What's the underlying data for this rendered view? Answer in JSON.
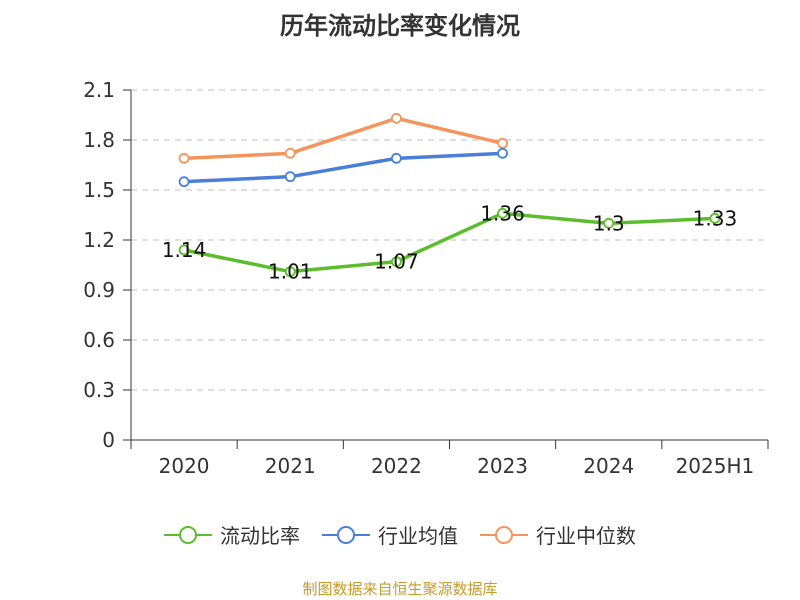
{
  "chart_data": {
    "type": "line",
    "title": "历年流动比率变化情况",
    "categories": [
      "2020",
      "2021",
      "2022",
      "2023",
      "2024",
      "2025H1"
    ],
    "ylim": [
      0,
      2.1
    ],
    "yticks": [
      "0",
      "0.3",
      "0.6",
      "0.9",
      "1.2",
      "1.5",
      "1.8",
      "2.1"
    ],
    "ytick_values": [
      0,
      0.3,
      0.6,
      0.9,
      1.2,
      1.5,
      1.8,
      2.1
    ],
    "grid": true,
    "legend_position": "bottom",
    "series": [
      {
        "name": "流动比率",
        "color": "#5bbd2b",
        "values": [
          1.14,
          1.01,
          1.07,
          1.36,
          1.3,
          1.33
        ],
        "labels": [
          "1.14",
          "1.01",
          "1.07",
          "1.36",
          "1.3",
          "1.33"
        ]
      },
      {
        "name": "行业均值",
        "color": "#4a7fd8",
        "values": [
          1.55,
          1.58,
          1.69,
          1.72,
          null,
          null
        ]
      },
      {
        "name": "行业中位数",
        "color": "#f4935a",
        "values": [
          1.69,
          1.72,
          1.93,
          1.78,
          null,
          null
        ]
      }
    ]
  },
  "source": "制图数据来自恒生聚源数据库"
}
